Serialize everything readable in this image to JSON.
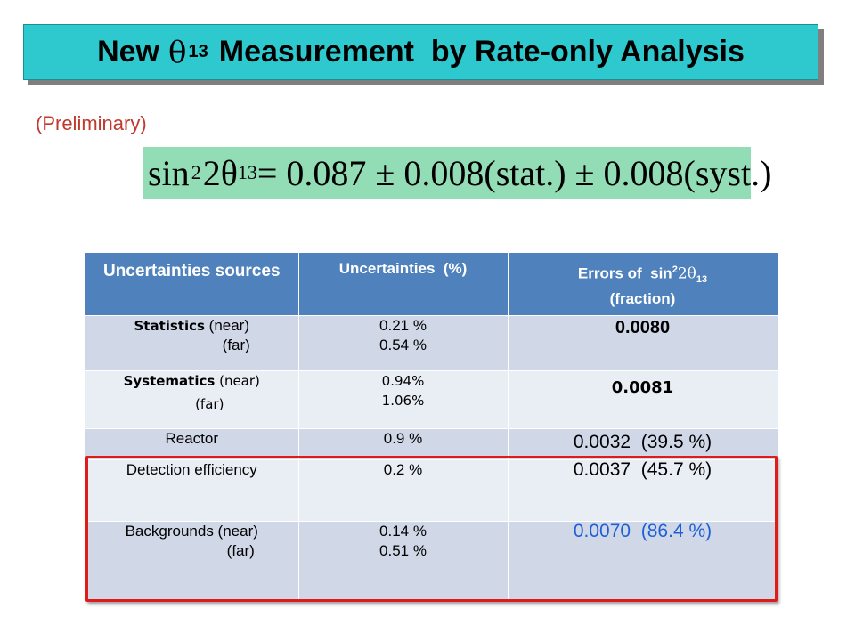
{
  "title": {
    "prefix": "New",
    "symbol": "θ",
    "subscript": "13",
    "suffix": "Measurement  by Rate-only Analysis"
  },
  "preliminary": "(Preliminary)",
  "formula": {
    "sin": "sin",
    "power": "2",
    "two_theta": "2θ",
    "sub": "13",
    "rest": "= 0.087 ± 0.008(stat.) ± 0.008(syst.)"
  },
  "table": {
    "headers": {
      "sources": "Uncertainties sources",
      "uncertainties": "Uncertainties  (%)",
      "errors_prefix": "Errors of  sin",
      "errors_power": "2",
      "errors_theta": "2θ",
      "errors_sub": "13",
      "errors_suffix": "(fraction)"
    },
    "rows": [
      {
        "source_bold": "Statistics",
        "source_line1": " (near)",
        "source_line2": "(far)",
        "unc_line1": "0.21 %",
        "unc_line2": "0.54 %",
        "error": "0.0080"
      },
      {
        "source_bold": "Systematics",
        "source_line1": " (near)",
        "source_line2": "(far)",
        "unc_line1": "0.94%",
        "unc_line2": "1.06%",
        "error": "0.0081"
      },
      {
        "source_line1": "Reactor",
        "unc_line1": "0.9 %",
        "error": "0.0032  (39.5 %)"
      },
      {
        "source_line1": "Detection efficiency",
        "unc_line1": "0.2 %",
        "error": "0.0037  (45.7 %)"
      },
      {
        "source_line1": "Backgrounds (near)",
        "source_line2": "(far)",
        "unc_line1": "0.14 %",
        "unc_line2": "0.51 %",
        "error": "0.0070  (86.4 %)"
      }
    ]
  },
  "colors": {
    "title_bg": "#2ec9cf",
    "formula_bg": "#92dcb6",
    "header_bg": "#4f81bd",
    "row_dark": "#d0d8e8",
    "row_light": "#e9edf4",
    "highlight_frame": "#e01b1b",
    "highlight_text": "#1f5fd6"
  }
}
